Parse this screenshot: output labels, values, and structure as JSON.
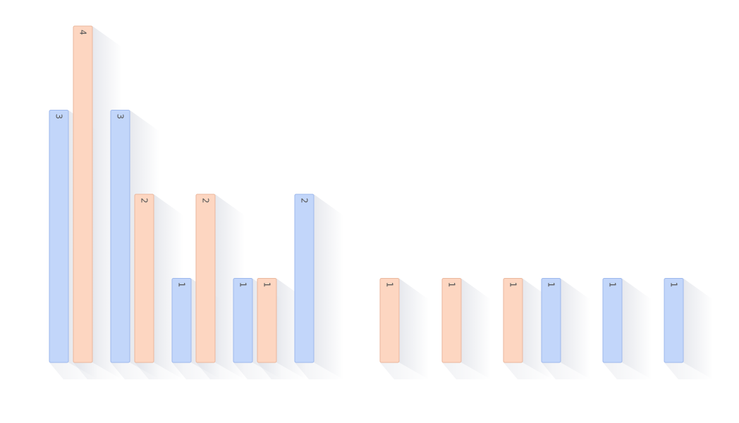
{
  "chart_data": {
    "type": "bar",
    "title": "",
    "xlabel": "",
    "ylabel": "",
    "ylim": [
      0,
      4
    ],
    "grid": false,
    "legend": "none",
    "colors": {
      "blue_fill": "#c2d6fa",
      "blue_stroke": "#9db8ec",
      "orange_fill": "#fdd6c1",
      "orange_stroke": "#eab79d",
      "label": "#555555",
      "shadow": "#c9cdd8"
    },
    "bars": [
      {
        "value": 3,
        "label": "3",
        "color": "blue"
      },
      {
        "value": 4,
        "label": "4",
        "color": "orange"
      },
      {
        "value": 3,
        "label": "3",
        "color": "blue"
      },
      {
        "value": 2,
        "label": "2",
        "color": "orange"
      },
      {
        "value": 1,
        "label": "1",
        "color": "blue"
      },
      {
        "value": 2,
        "label": "2",
        "color": "orange"
      },
      {
        "value": 1,
        "label": "1",
        "color": "blue"
      },
      {
        "value": 1,
        "label": "1",
        "color": "orange"
      },
      {
        "value": 2,
        "label": "2",
        "color": "blue"
      },
      {
        "value": 1,
        "label": "1",
        "color": "orange"
      },
      {
        "value": 1,
        "label": "1",
        "color": "orange"
      },
      {
        "value": 1,
        "label": "1",
        "color": "orange"
      },
      {
        "value": 1,
        "label": "1",
        "color": "blue"
      },
      {
        "value": 1,
        "label": "1",
        "color": "blue"
      },
      {
        "value": 1,
        "label": "1",
        "color": "blue"
      }
    ]
  }
}
